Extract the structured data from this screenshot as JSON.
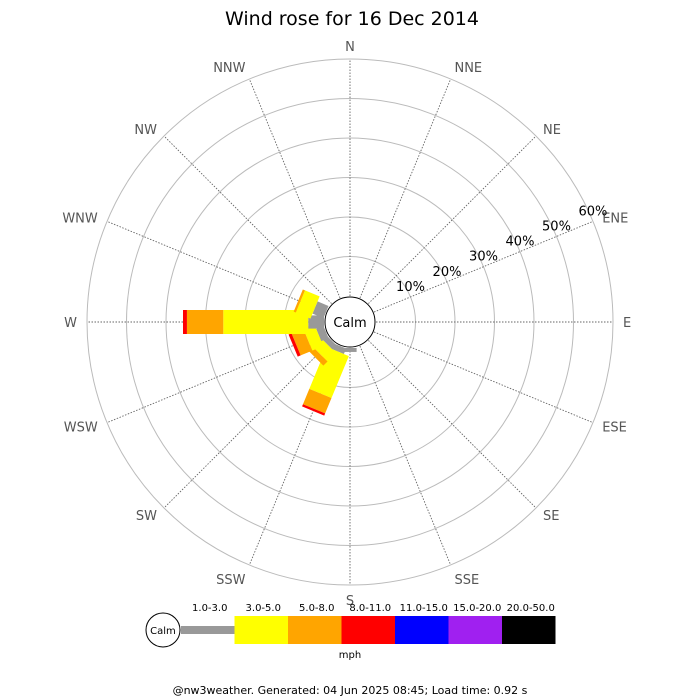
{
  "chart_data": {
    "type": "wind-rose",
    "title": "Wind rose for 16 Dec 2014",
    "directions": [
      "N",
      "NNE",
      "NE",
      "ENE",
      "E",
      "ESE",
      "SE",
      "SSE",
      "S",
      "SSW",
      "SW",
      "WSW",
      "W",
      "WNW",
      "NW",
      "NNW"
    ],
    "ring_labels": [
      "10%",
      "20%",
      "30%",
      "40%",
      "50%",
      "60%"
    ],
    "ring_values": [
      10,
      20,
      30,
      40,
      50,
      60
    ],
    "r_max": 60,
    "calm_label": "Calm",
    "speed_bins": [
      {
        "label": "1.0-3.0",
        "color": "#999999"
      },
      {
        "label": "3.0-5.0",
        "color": "#ffff00"
      },
      {
        "label": "5.0-8.0",
        "color": "#ffa500"
      },
      {
        "label": "8.0-11.0",
        "color": "#ff0000"
      },
      {
        "label": "11.0-15.0",
        "color": "#0000ff"
      },
      {
        "label": "15.0-20.0",
        "color": "#a020f0"
      },
      {
        "label": "20.0-50.0",
        "color": "#000000"
      }
    ],
    "series": [
      {
        "direction": "S",
        "values": [
          1.0,
          0,
          0,
          0,
          0,
          0,
          0
        ]
      },
      {
        "direction": "SSW",
        "values": [
          1.5,
          11.5,
          4.2,
          0.6,
          0,
          0,
          0
        ]
      },
      {
        "direction": "SW",
        "values": [
          1.5,
          3.0,
          1.5,
          0,
          0,
          0,
          0
        ]
      },
      {
        "direction": "WSW",
        "values": [
          2.0,
          3.0,
          3.2,
          0.8,
          0,
          0,
          0
        ]
      },
      {
        "direction": "W",
        "values": [
          4.0,
          21.5,
          9.2,
          1.0,
          0,
          0,
          0
        ]
      },
      {
        "direction": "WNW",
        "values": [
          3.0,
          4.0,
          0.6,
          0,
          0,
          0,
          0
        ]
      }
    ],
    "unit_label": "mph"
  },
  "footer": "@nw3weather. Generated: 04 Jun 2025 08:45; Load time: 0.92 s"
}
